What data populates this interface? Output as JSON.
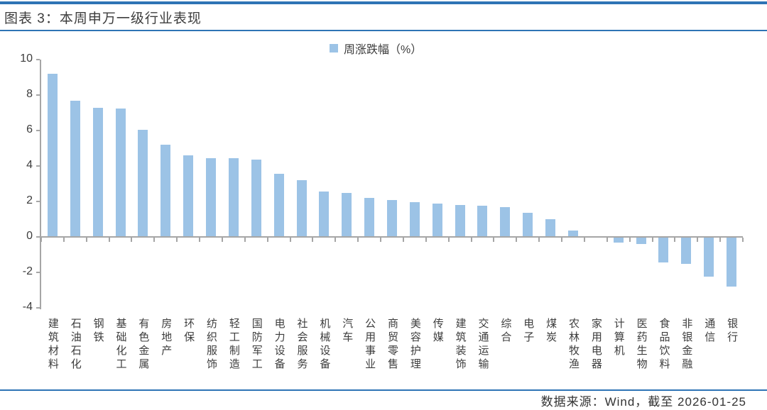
{
  "figure": {
    "title": "图表 3：本周申万一级行业表现",
    "source": "数据来源：Wind，截至 2026-01-25"
  },
  "legend": {
    "label": "周涨跌幅（%）"
  },
  "colors": {
    "rule_blue": "#2E74B5",
    "bar_fill": "#9CC3E6",
    "axis_gray": "#A6A6A6",
    "text_dark": "#3D3D3D"
  },
  "chart_data": {
    "type": "bar",
    "title": "本周申万一级行业表现",
    "legend": [
      "周涨跌幅（%）"
    ],
    "legend_position": "top-center",
    "grid": false,
    "ylabel": "",
    "xlabel": "",
    "ylim": [
      -4,
      10
    ],
    "yticks": [
      10,
      8,
      6,
      4,
      2,
      0,
      -2,
      -4
    ],
    "categories": [
      "建筑材料",
      "石油石化",
      "钢铁",
      "基础化工",
      "有色金属",
      "房地产",
      "环保",
      "纺织服饰",
      "轻工制造",
      "国防军工",
      "电力设备",
      "社会服务",
      "机械设备",
      "汽车",
      "公用事业",
      "商贸零售",
      "美容护理",
      "传媒",
      "建筑装饰",
      "交通运输",
      "综合",
      "电子",
      "煤炭",
      "农林牧渔",
      "家用电器",
      "计算机",
      "医药生物",
      "食品饮料",
      "非银金融",
      "通信",
      "银行"
    ],
    "values": [
      9.2,
      7.7,
      7.3,
      7.25,
      6.05,
      5.2,
      4.6,
      4.45,
      4.45,
      4.35,
      3.55,
      3.2,
      2.55,
      2.5,
      2.2,
      2.1,
      1.95,
      1.9,
      1.8,
      1.75,
      1.7,
      1.35,
      1.0,
      0.35,
      0.0,
      -0.3,
      -0.4,
      -1.45,
      -1.5,
      -2.25,
      -2.8
    ]
  }
}
